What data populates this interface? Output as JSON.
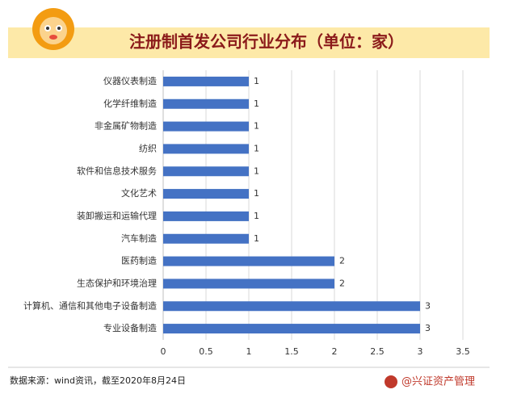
{
  "chart_data": {
    "type": "barh",
    "title": "注册制首发公司行业分布（单位：家）",
    "categories": [
      "仪器仪表制造",
      "化学纤维制造",
      "非金属矿物制造",
      "纺织",
      "软件和信息技术服务",
      "文化艺术",
      "装卸搬运和运输代理",
      "汽车制造",
      "医药制造",
      "生态保护和环境治理",
      "计算机、通信和其他电子设备制造",
      "专业设备制造"
    ],
    "values": [
      1,
      1,
      1,
      1,
      1,
      1,
      1,
      1,
      2,
      2,
      3,
      3
    ],
    "color": "#4472c4",
    "xlim": [
      0,
      3.5
    ],
    "xticks": [
      0,
      0.5,
      1,
      1.5,
      2,
      2.5,
      3,
      3.5
    ],
    "grid": true
  },
  "source": "数据来源：wind资讯，截至2020年8月24日",
  "brand": "@兴证资产管理"
}
